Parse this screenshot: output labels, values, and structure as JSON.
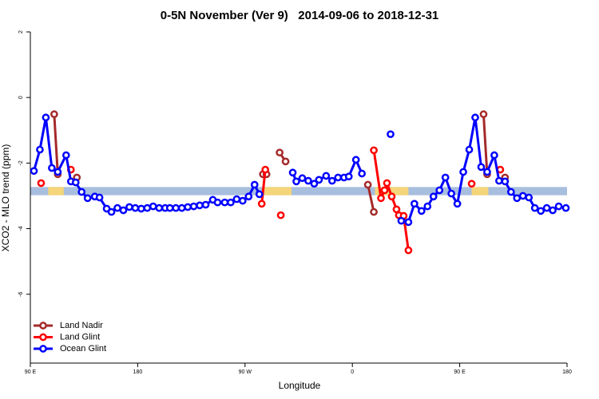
{
  "chart_data": {
    "type": "line",
    "title": "0-5N November (Ver 9)   2014-09-06 to 2018-12-31",
    "x_label": "Longitude",
    "y_label": "XCO2 - MLO trend (ppm)",
    "xlim": [
      90,
      540
    ],
    "xticks": [
      {
        "value": 90,
        "label": "90 E"
      },
      180,
      {
        "value": 270,
        "label": "90 W"
      },
      {
        "value": 360,
        "label": "0"
      },
      {
        "value": 450,
        "label": "90 E"
      },
      {
        "value": 540,
        "label": "180"
      }
    ],
    "ylim": [
      -8.1,
      2
    ],
    "yticks": [
      2,
      0,
      -2,
      -4,
      -6
    ],
    "legend": "bottomleft",
    "band": {
      "ylim": [
        -2.98,
        -2.73
      ],
      "color": "#a8bede",
      "highlights": [
        [
          105,
          118
        ],
        [
          286,
          309
        ],
        [
          379,
          407
        ],
        [
          460,
          474
        ]
      ],
      "highlight_color": "#f5d57a"
    },
    "series": [
      {
        "name": "Land Nadir",
        "color": "#a52a2a",
        "x": [
          110,
          113,
          null,
          129,
          null,
          285,
          288,
          null,
          299,
          304,
          null,
          373,
          378,
          null,
          470,
          473,
          null,
          488
        ],
        "values": [
          -0.51,
          -2.34,
          null,
          -2.44,
          null,
          -2.34,
          -2.34,
          null,
          -1.68,
          -1.95,
          null,
          -2.66,
          -3.49,
          null,
          -0.51,
          -2.34,
          null,
          -2.44
        ]
      },
      {
        "name": "Land Glint",
        "color": "#ff0000",
        "x": [
          99,
          null,
          124,
          null,
          284,
          287,
          null,
          300,
          null,
          378,
          384,
          387,
          389,
          393,
          397,
          399,
          403,
          407,
          null,
          460,
          null,
          484
        ],
        "values": [
          -2.61,
          null,
          -2.2,
          null,
          -3.24,
          -2.2,
          null,
          -3.59,
          null,
          -1.61,
          -3.07,
          -2.83,
          -2.61,
          -3.02,
          -3.41,
          -3.59,
          -3.61,
          -4.66,
          null,
          -2.63,
          null,
          -2.2
        ]
      },
      {
        "name": "Ocean Glint",
        "color": "#0000ff",
        "x": [
          93,
          98,
          103,
          108,
          113,
          120,
          124,
          128,
          133,
          138,
          144,
          148,
          154,
          158,
          163,
          168,
          173,
          178,
          183,
          188,
          193,
          198,
          203,
          207,
          212,
          217,
          222,
          227,
          232,
          237,
          243,
          247,
          253,
          258,
          263,
          268,
          273,
          278,
          282,
          null,
          310,
          313,
          318,
          323,
          328,
          332,
          338,
          343,
          348,
          353,
          357,
          363,
          368,
          null,
          392,
          null,
          401,
          407,
          412,
          418,
          423,
          428,
          433,
          438,
          443,
          448,
          453,
          458,
          463,
          468,
          473,
          479,
          483,
          488,
          493,
          498,
          503,
          508,
          513,
          518,
          523,
          528,
          533,
          539
        ],
        "values": [
          -2.24,
          -1.59,
          -0.61,
          -2.15,
          -2.27,
          -1.76,
          -2.56,
          -2.59,
          -2.88,
          -3.07,
          -3.02,
          -3.05,
          -3.39,
          -3.49,
          -3.37,
          -3.44,
          -3.34,
          -3.37,
          -3.39,
          -3.37,
          -3.32,
          -3.37,
          -3.37,
          -3.37,
          -3.37,
          -3.37,
          -3.34,
          -3.32,
          -3.29,
          -3.27,
          -3.12,
          -3.2,
          -3.2,
          -3.2,
          -3.1,
          -3.15,
          -3.02,
          -2.66,
          -2.95,
          null,
          -2.29,
          -2.56,
          -2.46,
          -2.54,
          -2.63,
          -2.51,
          -2.39,
          -2.54,
          -2.44,
          -2.44,
          -2.41,
          -1.9,
          -2.32,
          null,
          -1.12,
          null,
          -3.76,
          -3.8,
          -3.24,
          -3.46,
          -3.32,
          -3.02,
          -2.83,
          -2.44,
          -2.93,
          -3.24,
          -2.27,
          -1.59,
          -0.61,
          -2.12,
          -2.27,
          -1.76,
          -2.54,
          -2.56,
          -2.88,
          -3.07,
          -3.0,
          -3.05,
          -3.37,
          -3.46,
          -3.37,
          -3.44,
          -3.32,
          -3.37
        ]
      }
    ]
  }
}
